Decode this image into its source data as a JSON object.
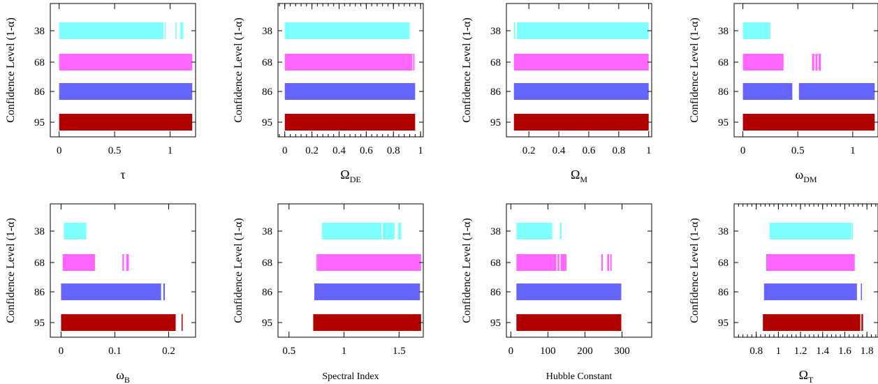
{
  "figure": {
    "ylabel": "Confidence Level (1-α)"
  },
  "chart_data": [
    {
      "type": "bar",
      "xlabel": "τ",
      "xlim": [
        -0.08,
        1.23
      ],
      "xticks": [
        0,
        0.5,
        1
      ],
      "xtick_labels": [
        "0",
        "0.5",
        "1"
      ],
      "minor_ticks": false,
      "categories": [
        "38",
        "68",
        "86",
        "95"
      ],
      "series": [
        {
          "intervals": [
            [
              0,
              0.94
            ],
            [
              0.95,
              0.96
            ],
            [
              1.05,
              1.06
            ],
            [
              1.09,
              1.12
            ]
          ],
          "color": "#80ffff"
        },
        {
          "intervals": [
            [
              0,
              1.2
            ]
          ],
          "color": "#ff66ff"
        },
        {
          "intervals": [
            [
              0,
              1.2
            ]
          ],
          "color": "#6666ff"
        },
        {
          "intervals": [
            [
              0,
              1.2
            ]
          ],
          "color": "#b00000"
        }
      ]
    },
    {
      "type": "bar",
      "xlabel": "Ω",
      "xlabel_sub": "DE",
      "xlim": [
        -0.05,
        1.02
      ],
      "xticks": [
        0,
        0.2,
        0.4,
        0.6,
        0.8,
        1
      ],
      "xtick_labels": [
        "0",
        "0.2",
        "0.4",
        "0.6",
        "0.8",
        "1"
      ],
      "minor_ticks": true,
      "categories": [
        "38",
        "68",
        "86",
        "95"
      ],
      "series": [
        {
          "intervals": [
            [
              0,
              0.92
            ]
          ],
          "color": "#80ffff"
        },
        {
          "intervals": [
            [
              0,
              0.94
            ],
            [
              0.945,
              0.955
            ]
          ],
          "color": "#ff66ff"
        },
        {
          "intervals": [
            [
              0,
              0.96
            ]
          ],
          "color": "#6666ff"
        },
        {
          "intervals": [
            [
              0,
              0.96
            ]
          ],
          "color": "#b00000"
        }
      ]
    },
    {
      "type": "bar",
      "xlabel": "Ω",
      "xlabel_sub": "M",
      "xlim": [
        0.05,
        1.02
      ],
      "xticks": [
        0.2,
        0.4,
        0.6,
        0.8,
        1
      ],
      "xtick_labels": [
        "0.2",
        "0.4",
        "0.6",
        "0.8",
        "1"
      ],
      "minor_ticks": false,
      "categories": [
        "38",
        "68",
        "86",
        "95"
      ],
      "series": [
        {
          "intervals": [
            [
              0.1,
              0.11
            ],
            [
              0.12,
              1
            ]
          ],
          "color": "#80ffff"
        },
        {
          "intervals": [
            [
              0.1,
              1
            ]
          ],
          "color": "#ff66ff"
        },
        {
          "intervals": [
            [
              0.1,
              1
            ]
          ],
          "color": "#6666ff"
        },
        {
          "intervals": [
            [
              0.1,
              1
            ]
          ],
          "color": "#b00000"
        }
      ]
    },
    {
      "type": "bar",
      "xlabel": "ω",
      "xlabel_sub": "DM",
      "xlim": [
        -0.08,
        1.23
      ],
      "xticks": [
        0,
        0.5,
        1
      ],
      "xtick_labels": [
        "0",
        "0.5",
        "1"
      ],
      "minor_ticks": false,
      "categories": [
        "38",
        "68",
        "86",
        "95"
      ],
      "series": [
        {
          "intervals": [
            [
              0,
              0.25
            ]
          ],
          "color": "#80ffff"
        },
        {
          "intervals": [
            [
              0,
              0.37
            ],
            [
              0.63,
              0.65
            ],
            [
              0.66,
              0.68
            ],
            [
              0.69,
              0.71
            ]
          ],
          "color": "#ff66ff"
        },
        {
          "intervals": [
            [
              0,
              0.45
            ],
            [
              0.51,
              1.2
            ]
          ],
          "color": "#6666ff"
        },
        {
          "intervals": [
            [
              0,
              1.2
            ]
          ],
          "color": "#b00000"
        }
      ]
    },
    {
      "type": "bar",
      "xlabel": "ω",
      "xlabel_sub": "B",
      "xlim": [
        -0.02,
        0.25
      ],
      "xticks": [
        0,
        0.1,
        0.2
      ],
      "xtick_labels": [
        "0",
        "0.1",
        "0.2"
      ],
      "minor_ticks": false,
      "categories": [
        "38",
        "68",
        "86",
        "95"
      ],
      "series": [
        {
          "intervals": [
            [
              0.005,
              0.047
            ]
          ],
          "color": "#80ffff"
        },
        {
          "intervals": [
            [
              0.003,
              0.063
            ],
            [
              0.114,
              0.117
            ],
            [
              0.121,
              0.126
            ]
          ],
          "color": "#ff66ff"
        },
        {
          "intervals": [
            [
              0,
              0.186
            ],
            [
              0.19,
              0.193
            ]
          ],
          "color": "#6666ff"
        },
        {
          "intervals": [
            [
              0,
              0.213
            ],
            [
              0.224,
              0.226
            ]
          ],
          "color": "#b00000"
        }
      ]
    },
    {
      "type": "bar",
      "xlabel": "Spectral Index",
      "xlim": [
        0.4,
        1.72
      ],
      "xticks": [
        0.5,
        1,
        1.5
      ],
      "xtick_labels": [
        "0.5",
        "1",
        "1.5"
      ],
      "minor_ticks": false,
      "categories": [
        "38",
        "68",
        "86",
        "95"
      ],
      "series": [
        {
          "intervals": [
            [
              0.8,
              1.34
            ],
            [
              1.35,
              1.46
            ],
            [
              1.49,
              1.52
            ]
          ],
          "color": "#80ffff"
        },
        {
          "intervals": [
            [
              0.75,
              1.7
            ]
          ],
          "color": "#ff66ff"
        },
        {
          "intervals": [
            [
              0.73,
              1.69
            ]
          ],
          "color": "#6666ff"
        },
        {
          "intervals": [
            [
              0.72,
              1.7
            ]
          ],
          "color": "#b00000"
        }
      ]
    },
    {
      "type": "bar",
      "xlabel": "Hubble Constant",
      "xlim": [
        -12,
        380
      ],
      "xticks": [
        0,
        100,
        200,
        300
      ],
      "xtick_labels": [
        "0",
        "100",
        "200",
        "300"
      ],
      "minor_ticks": false,
      "categories": [
        "38",
        "68",
        "86",
        "95"
      ],
      "series": [
        {
          "intervals": [
            [
              15,
              112
            ],
            [
              132,
              137
            ]
          ],
          "color": "#80ffff"
        },
        {
          "intervals": [
            [
              15,
              123
            ],
            [
              126,
              131
            ],
            [
              134,
              150
            ],
            [
              244,
              248
            ],
            [
              260,
              265
            ],
            [
              268,
              272
            ]
          ],
          "color": "#ff66ff"
        },
        {
          "intervals": [
            [
              15,
              298
            ]
          ],
          "color": "#6666ff"
        },
        {
          "intervals": [
            [
              15,
              298
            ]
          ],
          "color": "#b00000"
        }
      ]
    },
    {
      "type": "bar",
      "xlabel": "Ω",
      "xlabel_sub": "T",
      "xlim": [
        0.6,
        1.9
      ],
      "xticks": [
        0.8,
        1,
        1.2,
        1.4,
        1.6,
        1.8
      ],
      "xtick_labels": [
        "0.8",
        "1",
        "1.2",
        "1.4",
        "1.6",
        "1.8"
      ],
      "minor_ticks": true,
      "categories": [
        "38",
        "68",
        "86",
        "95"
      ],
      "series": [
        {
          "intervals": [
            [
              0.92,
              1.66
            ],
            [
              1.665,
              1.675
            ]
          ],
          "color": "#80ffff"
        },
        {
          "intervals": [
            [
              0.89,
              1.69
            ]
          ],
          "color": "#ff66ff"
        },
        {
          "intervals": [
            [
              0.87,
              1.71
            ],
            [
              1.745,
              1.755
            ]
          ],
          "color": "#6666ff"
        },
        {
          "intervals": [
            [
              0.86,
              1.74
            ],
            [
              1.75,
              1.765
            ]
          ],
          "color": "#b00000"
        }
      ]
    }
  ]
}
